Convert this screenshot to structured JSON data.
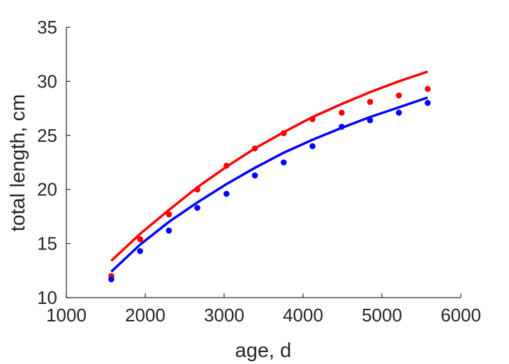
{
  "chart_data": {
    "type": "scatter",
    "title": "",
    "xlabel": "age, d",
    "ylabel": "total length, cm",
    "xlim": [
      1000,
      6000
    ],
    "ylim": [
      10,
      35
    ],
    "xticks": [
      1000,
      2000,
      3000,
      4000,
      5000,
      6000
    ],
    "yticks": [
      10,
      15,
      20,
      25,
      30,
      35
    ],
    "grid": false,
    "legend": "none",
    "series": [
      {
        "color": "#ff0000",
        "points": [
          [
            1570,
            12.0
          ],
          [
            1935,
            15.4
          ],
          [
            2300,
            17.7
          ],
          [
            2660,
            20.0
          ],
          [
            3030,
            22.2
          ],
          [
            3390,
            23.8
          ],
          [
            3755,
            25.2
          ],
          [
            4120,
            26.5
          ],
          [
            4490,
            27.1
          ],
          [
            4850,
            28.1
          ],
          [
            5215,
            28.7
          ],
          [
            5580,
            29.3
          ]
        ],
        "fit": [
          [
            1570,
            13.4
          ],
          [
            1935,
            15.9
          ],
          [
            2300,
            18.1
          ],
          [
            2660,
            20.2
          ],
          [
            3030,
            22.1
          ],
          [
            3390,
            23.8
          ],
          [
            3755,
            25.3
          ],
          [
            4120,
            26.7
          ],
          [
            4490,
            27.9
          ],
          [
            4850,
            29.0
          ],
          [
            5215,
            30.0
          ],
          [
            5580,
            30.9
          ]
        ]
      },
      {
        "color": "#0000ff",
        "points": [
          [
            1570,
            11.7
          ],
          [
            1935,
            14.3
          ],
          [
            2300,
            16.2
          ],
          [
            2660,
            18.3
          ],
          [
            3030,
            19.6
          ],
          [
            3390,
            21.3
          ],
          [
            3755,
            22.5
          ],
          [
            4120,
            24.0
          ],
          [
            4490,
            25.8
          ],
          [
            4850,
            26.4
          ],
          [
            5215,
            27.1
          ],
          [
            5580,
            28.0
          ]
        ],
        "fit": [
          [
            1570,
            12.4
          ],
          [
            1935,
            14.9
          ],
          [
            2300,
            17.0
          ],
          [
            2660,
            18.8
          ],
          [
            3030,
            20.5
          ],
          [
            3390,
            22.0
          ],
          [
            3755,
            23.4
          ],
          [
            4120,
            24.6
          ],
          [
            4490,
            25.7
          ],
          [
            4850,
            26.7
          ],
          [
            5215,
            27.6
          ],
          [
            5580,
            28.5
          ]
        ]
      }
    ]
  }
}
